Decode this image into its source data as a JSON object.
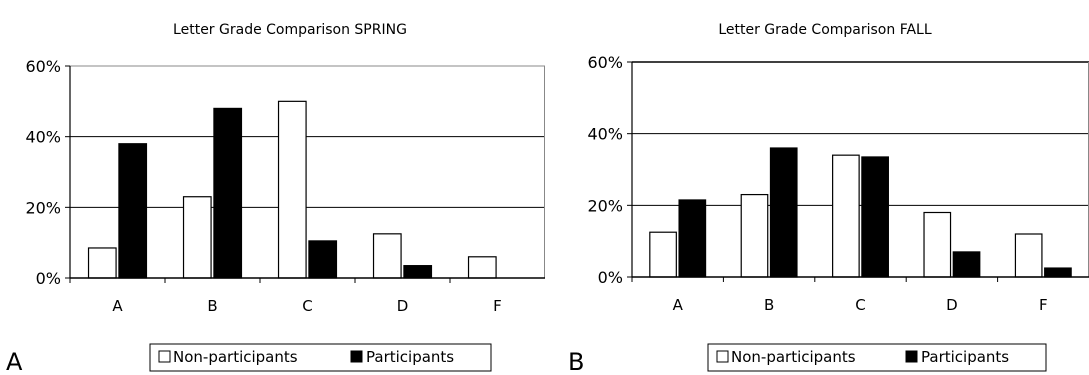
{
  "chart_data": [
    {
      "type": "bar",
      "panel_label": "A",
      "title": "Letter Grade Comparison SPRING",
      "xlabel": "",
      "ylabel": "",
      "categories": [
        "A",
        "B",
        "C",
        "D",
        "F"
      ],
      "ylim": [
        0,
        60
      ],
      "yticks": [
        "0%",
        "20%",
        "40%",
        "60%"
      ],
      "grid": true,
      "legend_position": "bottom",
      "series": [
        {
          "name": "Non-participants",
          "fill": "#ffffff",
          "values": [
            8.5,
            23,
            50,
            12.5,
            6
          ]
        },
        {
          "name": "Participants",
          "fill": "#000000",
          "values": [
            38,
            48,
            10.5,
            3.5,
            0
          ]
        }
      ]
    },
    {
      "type": "bar",
      "panel_label": "B",
      "title": "Letter Grade Comparison FALL",
      "xlabel": "",
      "ylabel": "",
      "categories": [
        "A",
        "B",
        "C",
        "D",
        "F"
      ],
      "ylim": [
        0,
        60
      ],
      "yticks": [
        "0%",
        "20%",
        "40%",
        "60%"
      ],
      "grid": true,
      "legend_position": "bottom",
      "series": [
        {
          "name": "Non-participants",
          "fill": "#ffffff",
          "values": [
            12.5,
            23,
            34,
            18,
            12
          ]
        },
        {
          "name": "Participants",
          "fill": "#000000",
          "values": [
            21.5,
            36,
            33.5,
            7,
            2.5
          ]
        }
      ]
    }
  ]
}
